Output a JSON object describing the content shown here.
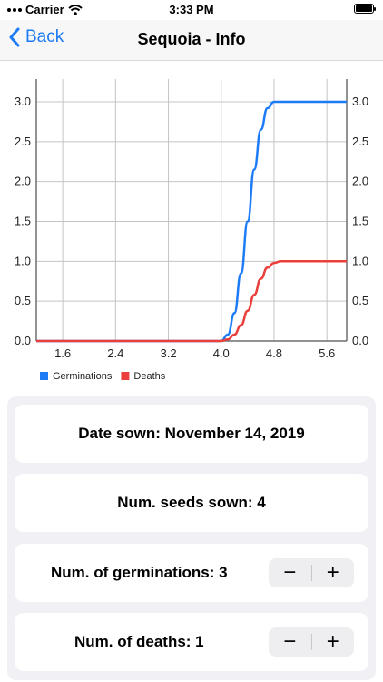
{
  "status_bar": {
    "carrier": "Carrier",
    "time": "3:33 PM"
  },
  "nav": {
    "back_label": "Back",
    "title": "Sequoia - Info"
  },
  "chart_data": {
    "type": "line",
    "x": [
      1.2,
      1.6,
      2.0,
      2.4,
      2.8,
      3.2,
      3.6,
      4.0,
      4.1,
      4.2,
      4.3,
      4.4,
      4.5,
      4.6,
      4.7,
      4.8,
      4.9,
      5.0,
      5.2,
      5.6,
      5.9
    ],
    "xlim": [
      1.2,
      5.9
    ],
    "x_ticks": [
      "1.6",
      "2.4",
      "3.2",
      "4.0",
      "4.8",
      "5.6"
    ],
    "x_tick_values": [
      1.6,
      2.4,
      3.2,
      4.0,
      4.8,
      5.6
    ],
    "ylim": [
      0,
      3.0
    ],
    "y_ticks": [
      "0.0",
      "0.5",
      "1.0",
      "1.5",
      "2.0",
      "2.5",
      "3.0"
    ],
    "y_tick_values": [
      0,
      0.5,
      1.0,
      1.5,
      2.0,
      2.5,
      3.0
    ],
    "grid": true,
    "legend_position": "bottom-left",
    "series": [
      {
        "name": "Germinations",
        "color": "#1e7bf6",
        "values": [
          0,
          0,
          0,
          0,
          0,
          0,
          0,
          0,
          0.08,
          0.35,
          0.85,
          1.5,
          2.15,
          2.65,
          2.92,
          3.0,
          3.0,
          3.0,
          3.0,
          3.0,
          3.0
        ]
      },
      {
        "name": "Deaths",
        "color": "#ea3f3a",
        "values": [
          0,
          0,
          0,
          0,
          0,
          0,
          0,
          0,
          0.02,
          0.08,
          0.2,
          0.38,
          0.58,
          0.78,
          0.92,
          0.98,
          1.0,
          1.0,
          1.0,
          1.0,
          1.0
        ]
      }
    ]
  },
  "cards": {
    "date_sown": "Date sown: November 14, 2019",
    "seeds_sown": "Num. seeds sown: 4",
    "germinations": "Num. of germinations: 3",
    "deaths": "Num. of deaths: 1",
    "minus_symbol": "−",
    "plus_symbol": "+"
  }
}
